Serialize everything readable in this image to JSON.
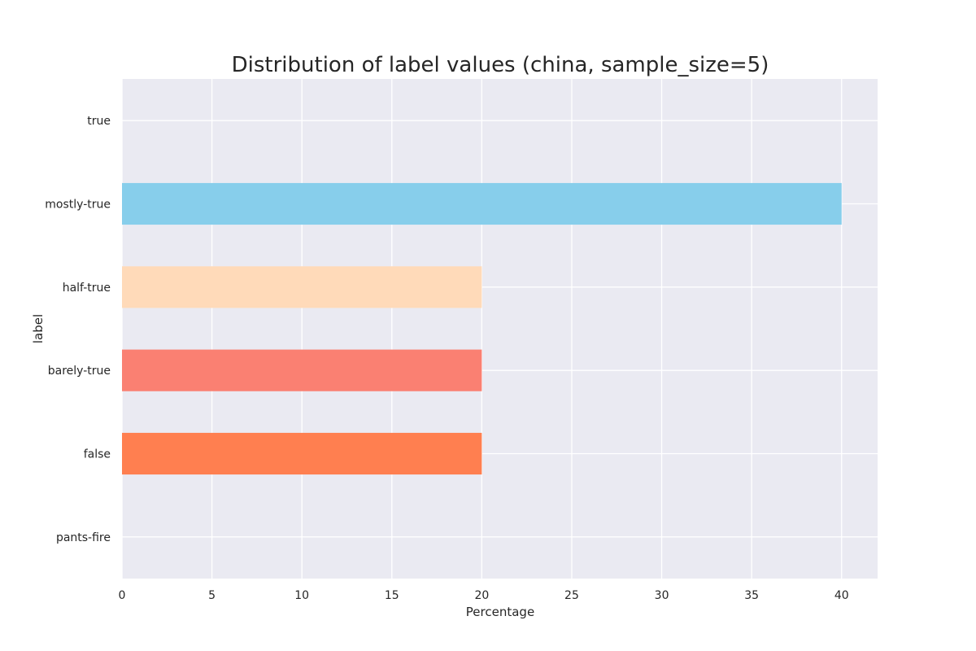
{
  "chart_data": {
    "type": "bar",
    "orientation": "horizontal",
    "title": "Distribution of label values (china, sample_size=5)",
    "xlabel": "Percentage",
    "ylabel": "label",
    "categories": [
      "true",
      "mostly-true",
      "half-true",
      "barely-true",
      "false",
      "pants-fire"
    ],
    "values": [
      0,
      40,
      20,
      20,
      20,
      0
    ],
    "colors": [
      "#87CEEB",
      "#87CEEB",
      "#FFDAB9",
      "#FA8072",
      "#FF7F50",
      "#FF7F50"
    ],
    "xlim": [
      0,
      42
    ],
    "xticks": [
      0,
      5,
      10,
      15,
      20,
      25,
      30,
      35,
      40
    ],
    "xtick_labels": [
      "0",
      "5",
      "10",
      "15",
      "20",
      "25",
      "30",
      "35",
      "40"
    ],
    "grid": true,
    "background": "#EAEAF2",
    "grid_color": "#FFFFFF"
  }
}
